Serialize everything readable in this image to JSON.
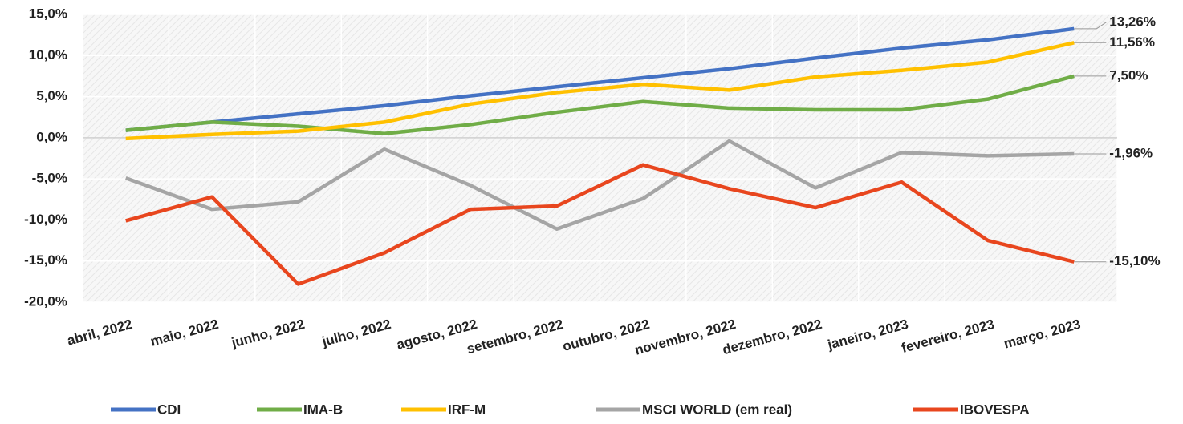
{
  "chart_data": {
    "type": "line",
    "categories": [
      "abril, 2022",
      "maio, 2022",
      "junho, 2022",
      "julho, 2022",
      "agosto, 2022",
      "setembro, 2022",
      "outubro, 2022",
      "novembro, 2022",
      "dezembro, 2022",
      "janeiro, 2023",
      "fevereiro, 2023",
      "março, 2023"
    ],
    "series": [
      {
        "name": "CDI",
        "color": "#4472c4",
        "values": [
          0.9,
          1.9,
          2.9,
          3.9,
          5.1,
          6.2,
          7.3,
          8.4,
          9.7,
          10.9,
          11.9,
          13.26
        ],
        "value_labels": [
          null,
          null,
          null,
          null,
          null,
          null,
          null,
          null,
          null,
          null,
          null,
          "13,26%"
        ]
      },
      {
        "name": "IMA-B",
        "color": "#70ad47",
        "values": [
          0.9,
          1.9,
          1.4,
          0.5,
          1.6,
          3.1,
          4.4,
          3.6,
          3.4,
          3.4,
          4.7,
          7.5
        ],
        "value_labels": [
          null,
          null,
          null,
          null,
          null,
          null,
          null,
          null,
          null,
          null,
          null,
          "7,50%"
        ]
      },
      {
        "name": "IRF-M",
        "color": "#ffc000",
        "values": [
          -0.1,
          0.4,
          0.8,
          1.9,
          4.1,
          5.5,
          6.5,
          5.8,
          7.4,
          8.2,
          9.2,
          11.56
        ],
        "value_labels": [
          null,
          null,
          null,
          null,
          null,
          null,
          null,
          null,
          null,
          null,
          null,
          "11,56%"
        ]
      },
      {
        "name": "MSCI WORLD (em real)",
        "color": "#a5a5a5",
        "values": [
          -4.9,
          -8.7,
          -7.8,
          -1.4,
          -5.8,
          -11.1,
          -7.4,
          -0.4,
          -6.1,
          -1.8,
          -2.2,
          -1.96
        ],
        "value_labels": [
          null,
          null,
          null,
          null,
          null,
          null,
          null,
          null,
          null,
          null,
          null,
          "-1,96%"
        ]
      },
      {
        "name": "IBOVESPA",
        "color": "#e8461e",
        "values": [
          -10.1,
          -7.2,
          -17.8,
          -14.0,
          -8.7,
          -8.3,
          -3.3,
          -6.2,
          -8.5,
          -5.4,
          -12.5,
          -15.1
        ],
        "value_labels": [
          null,
          null,
          null,
          null,
          null,
          null,
          null,
          null,
          null,
          null,
          null,
          "-15,10%"
        ]
      }
    ],
    "ylim": [
      -20,
      15
    ],
    "yticks": [
      {
        "value": -20,
        "label": "-20,0%"
      },
      {
        "value": -15,
        "label": "-15,0%"
      },
      {
        "value": -10,
        "label": "-10,0%"
      },
      {
        "value": -5,
        "label": "-5,0%"
      },
      {
        "value": 0,
        "label": "0,0%"
      },
      {
        "value": 5,
        "label": "5,0%"
      },
      {
        "value": 10,
        "label": "10,0%"
      },
      {
        "value": 15,
        "label": "15,0%"
      }
    ],
    "grid": true,
    "legend": "bottom"
  }
}
